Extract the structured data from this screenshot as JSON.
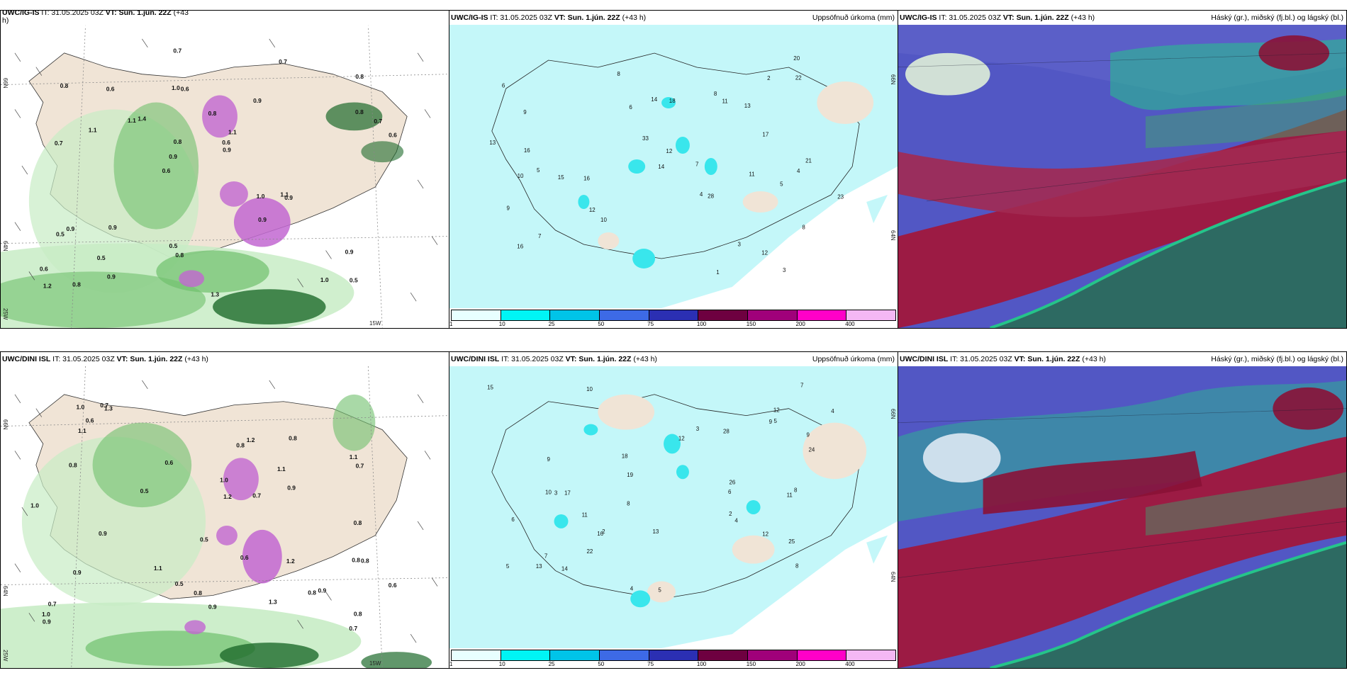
{
  "colors": {
    "land": "#f0e4d6",
    "green_light": "#c8ecc5",
    "green_mid": "#6fc06c",
    "green_dark": "#1e6b2c",
    "purple": "#c267d1",
    "cyan_bg": "#c4f7f9",
    "cyan_mid": "#39e6ec",
    "cloud_blue": "#5257c4",
    "cloud_red": "#9c1b44",
    "cloud_teal": "#2d6a62",
    "cloud_green": "#25c48a"
  },
  "rows": [
    {
      "model": "UWC/IG-IS",
      "col1": {
        "title_model": "UWC/IG-IS",
        "title_it": "IT: 31.05.2025 03Z",
        "title_vt": "VT: Sun. 1.jún. 22Z",
        "title_lead": "(+43",
        "title_lead2": "h)",
        "lat_top": "66N",
        "lat_mid": "64N",
        "lon_left": "25W",
        "lon_bottom": "15W",
        "values": [
          "0.5",
          "0.7",
          "0.8",
          "0.6",
          "0.9",
          "0.8",
          "1.0",
          "0.8",
          "0.9",
          "1.4",
          "0.6",
          "0.5",
          "0.6",
          "1.1",
          "0.9",
          "0.8",
          "0.7",
          "0.6",
          "1.0",
          "0.8",
          "0.9",
          "0.5",
          "0.8",
          "0.6",
          "0.7",
          "0.9",
          "1.0",
          "0.9",
          "1.1",
          "1.3",
          "1.1",
          "1.1",
          "0.9",
          "0.9",
          "0.7",
          "0.6",
          "1.2",
          "0.8",
          "0.9",
          "0.5"
        ]
      },
      "col2": {
        "title_model": "UWC/IG-IS",
        "title_it": "IT: 31.05.2025 03Z",
        "title_vt": "VT: Sun. 1.jún. 22Z",
        "title_lead": "(+43 h)",
        "title_right": "Uppsöfnuð úrkoma (mm)",
        "lat_top": "66N",
        "lat_mid": "64N",
        "values": [
          "3",
          "5",
          "4",
          "6",
          "8",
          "9",
          "7",
          "16",
          "13",
          "14",
          "11",
          "12",
          "10",
          "8",
          "7",
          "9",
          "11",
          "12",
          "13",
          "16",
          "20",
          "18",
          "17",
          "23",
          "21",
          "16",
          "15",
          "14",
          "33",
          "22",
          "28",
          "10",
          "12",
          "8",
          "6",
          "5",
          "4",
          "3",
          "2",
          "1"
        ]
      },
      "col3": {
        "title_model": "UWC/IG-IS",
        "title_it": "IT: 31.05.2025 03Z",
        "title_vt": "VT: Sun. 1.jún. 22Z",
        "title_lead": "(+43 h)",
        "title_right": "Háský (gr.), miðský (fj.bl.) og lágský (bl.)"
      }
    },
    {
      "model": "UWC/DINI ISL",
      "col1": {
        "title_model": "UWC/DINI ISL",
        "title_it": "IT: 31.05.2025 03Z",
        "title_vt": "VT: Sun. 1.jún. 22Z",
        "title_lead": "(+43 h)",
        "lat_top": "66N",
        "lat_mid": "64N",
        "lon_left": "25W",
        "lon_bottom": "15W",
        "values": [
          "0.9",
          "0.7",
          "0.8",
          "0.6",
          "1.2",
          "0.9",
          "1.0",
          "1.1",
          "0.8",
          "0.7",
          "1.3",
          "0.6",
          "0.8",
          "0.9",
          "1.0",
          "0.5",
          "0.7",
          "1.1",
          "0.8",
          "1.2",
          "0.9",
          "0.8",
          "0.5",
          "0.6",
          "0.7",
          "1.0",
          "0.8",
          "1.3",
          "1.1",
          "0.9",
          "0.8",
          "1.0",
          "1.2",
          "0.7",
          "0.9",
          "0.8",
          "1.1",
          "0.5",
          "0.6",
          "0.8"
        ]
      },
      "col2": {
        "title_model": "UWC/DINI ISL",
        "title_it": "IT: 31.05.2025 03Z",
        "title_vt": "VT: Sun. 1.jún. 22Z",
        "title_lead": "(+43 h)",
        "title_right": "Uppsöfnuð úrkoma (mm)",
        "lat_top": "66N",
        "lat_mid": "64N",
        "values": [
          "5",
          "4",
          "3",
          "6",
          "8",
          "9",
          "10",
          "13",
          "12",
          "14",
          "11",
          "7",
          "12",
          "16",
          "15",
          "18",
          "17",
          "19",
          "22",
          "24",
          "28",
          "25",
          "26",
          "13",
          "8",
          "9",
          "10",
          "11",
          "7",
          "6",
          "5",
          "4",
          "3",
          "2",
          "5",
          "8",
          "9",
          "12",
          "4",
          "2"
        ]
      },
      "col3": {
        "title_model": "UWC/DINI ISL",
        "title_it": "IT: 31.05.2025 03Z",
        "title_vt": "VT: Sun. 1.jún. 22Z",
        "title_lead": "(+43 h)",
        "title_right": "Háský (gr.), miðský (fj.bl.) og lágský (bl.)"
      }
    }
  ],
  "legend": {
    "colors": [
      "#e8ffff",
      "#00f5f5",
      "#00c4e8",
      "#3d6ae6",
      "#2b2fb3",
      "#6e0040",
      "#a0007a",
      "#ff00c8",
      "#f4b8f4"
    ],
    "ticks": [
      "1",
      "10",
      "25",
      "50",
      "75",
      "100",
      "150",
      "200",
      "400"
    ]
  }
}
